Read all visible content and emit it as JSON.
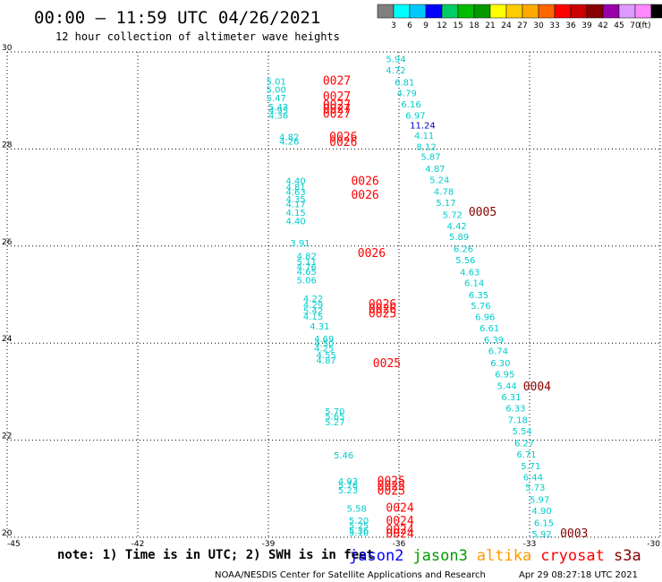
{
  "header": {
    "title": "00:00 — 11:59 UTC 04/26/2021",
    "subtitle": "12 hour collection of altimeter wave heights",
    "unit_label": "(ft)"
  },
  "scale": {
    "levels": [
      "3",
      "6",
      "9",
      "12",
      "15",
      "18",
      "21",
      "24",
      "27",
      "30",
      "33",
      "36",
      "39",
      "42",
      "45",
      "70"
    ],
    "colors": [
      "#808080",
      "#00ffff",
      "#00c8ff",
      "#0000ff",
      "#00cc66",
      "#00bb00",
      "#009900",
      "#ffff00",
      "#ffcc00",
      "#ffaa00",
      "#ff6600",
      "#ff0000",
      "#cc0000",
      "#880000",
      "#9900aa",
      "#dd99ff",
      "#ff88ff",
      "#000000"
    ]
  },
  "footer": {
    "note": "note: 1) Time is in UTC; 2) SWH is in feet",
    "satellites": [
      {
        "name": "jason2",
        "color": "#0000ff"
      },
      {
        "name": "jason3",
        "color": "#009900"
      },
      {
        "name": "altika",
        "color": "#ff9900"
      },
      {
        "name": "cryosat",
        "color": "#ff0000"
      },
      {
        "name": "s3a",
        "color": "#880000"
      }
    ],
    "credit": "NOAA/NESDIS Center for Satellite Applications and Research",
    "timestamp": "Apr 29 08:27:18 UTC 2021"
  },
  "chart_data": {
    "type": "scatter",
    "xlim": [
      -45,
      -30
    ],
    "ylim": [
      20,
      30
    ],
    "x_ticks": [
      "-45",
      "-42",
      "-39",
      "-36",
      "-33",
      "-30"
    ],
    "y_ticks": [
      "20",
      "22",
      "24",
      "26",
      "28",
      "30"
    ],
    "grid": true,
    "swh_color": "#00cccc",
    "series": [
      {
        "name": "left-track-swh",
        "points": [
          [
            -39.05,
            29.4,
            "5.01"
          ],
          [
            -39.05,
            29.23,
            "5.00"
          ],
          [
            -39.05,
            29.06,
            "5.47"
          ],
          [
            -39.0,
            28.87,
            "5.43"
          ],
          [
            -39.0,
            28.8,
            "4.95"
          ],
          [
            -39.0,
            28.7,
            "4.36"
          ],
          [
            -38.75,
            28.26,
            "4.82"
          ],
          [
            -38.75,
            28.16,
            "4.26"
          ],
          [
            -38.6,
            27.35,
            "4.40"
          ],
          [
            -38.6,
            27.22,
            "4.81"
          ],
          [
            -38.6,
            27.12,
            "4.63"
          ],
          [
            -38.6,
            26.97,
            "4.35"
          ],
          [
            -38.6,
            26.87,
            "4.17"
          ],
          [
            -38.6,
            26.7,
            "4.15"
          ],
          [
            -38.6,
            26.52,
            "4.40"
          ],
          [
            -38.5,
            26.07,
            "3.91"
          ],
          [
            -38.35,
            25.8,
            "4.82"
          ],
          [
            -38.35,
            25.68,
            "5.11"
          ],
          [
            -38.35,
            25.58,
            "4.76"
          ],
          [
            -38.35,
            25.48,
            "4.65"
          ],
          [
            -38.35,
            25.3,
            "5.06"
          ],
          [
            -38.2,
            24.93,
            "4.22"
          ],
          [
            -38.2,
            24.8,
            "4.29"
          ],
          [
            -38.2,
            24.68,
            "5.42"
          ],
          [
            -38.2,
            24.56,
            "4.15"
          ],
          [
            -38.05,
            24.35,
            "4.31"
          ],
          [
            -37.95,
            24.1,
            "4.69"
          ],
          [
            -37.95,
            24.0,
            "4.50"
          ],
          [
            -37.95,
            23.9,
            "4.25"
          ],
          [
            -37.9,
            23.76,
            "4.55"
          ],
          [
            -37.9,
            23.65,
            "4.87"
          ],
          [
            -37.7,
            22.6,
            "5.70"
          ],
          [
            -37.7,
            22.5,
            "5.65"
          ],
          [
            -37.7,
            22.38,
            "5.27"
          ],
          [
            -37.5,
            21.7,
            "5.46"
          ],
          [
            -37.4,
            21.16,
            "4.93"
          ],
          [
            -37.4,
            21.08,
            "5.76"
          ],
          [
            -37.4,
            20.98,
            "5.23"
          ],
          [
            -37.2,
            20.6,
            "5.58"
          ],
          [
            -37.15,
            20.35,
            "5.20"
          ],
          [
            -37.15,
            20.25,
            "5.25"
          ],
          [
            -37.15,
            20.15,
            "5.36"
          ],
          [
            -37.15,
            20.1,
            "5.10"
          ]
        ]
      },
      {
        "name": "right-track-swh",
        "points": [
          [
            -36.3,
            29.86,
            "5.94"
          ],
          [
            -36.3,
            29.63,
            "4.72"
          ],
          [
            -36.1,
            29.38,
            "6.81"
          ],
          [
            -36.05,
            29.16,
            "4.79"
          ],
          [
            -35.95,
            28.93,
            "6.16"
          ],
          [
            -35.85,
            28.7,
            "6.97"
          ],
          [
            -35.75,
            28.5,
            "11.24"
          ],
          [
            -35.65,
            28.28,
            "4.11"
          ],
          [
            -35.6,
            28.05,
            "8.12"
          ],
          [
            -35.5,
            27.85,
            "5.87"
          ],
          [
            -35.4,
            27.6,
            "4.87"
          ],
          [
            -35.3,
            27.37,
            "5.24"
          ],
          [
            -35.2,
            27.13,
            "4.78"
          ],
          [
            -35.15,
            26.9,
            "5.17"
          ],
          [
            -35.0,
            26.65,
            "5.72"
          ],
          [
            -34.9,
            26.42,
            "4.42"
          ],
          [
            -34.85,
            26.2,
            "5.89"
          ],
          [
            -34.75,
            25.95,
            "6.26"
          ],
          [
            -34.7,
            25.72,
            "5.56"
          ],
          [
            -34.6,
            25.47,
            "4.63"
          ],
          [
            -34.5,
            25.25,
            "6.14"
          ],
          [
            -34.4,
            25.0,
            "6.35"
          ],
          [
            -34.35,
            24.78,
            "5.76"
          ],
          [
            -34.25,
            24.55,
            "6.96"
          ],
          [
            -34.15,
            24.32,
            "6.61"
          ],
          [
            -34.05,
            24.08,
            "6.39"
          ],
          [
            -33.95,
            23.85,
            "6.74"
          ],
          [
            -33.9,
            23.6,
            "6.30"
          ],
          [
            -33.8,
            23.37,
            "6.95"
          ],
          [
            -33.75,
            23.13,
            "5.44"
          ],
          [
            -33.65,
            22.9,
            "6.31"
          ],
          [
            -33.55,
            22.67,
            "6.33"
          ],
          [
            -33.5,
            22.43,
            "7.18"
          ],
          [
            -33.4,
            22.2,
            "5.54"
          ],
          [
            -33.35,
            21.95,
            "6.27"
          ],
          [
            -33.3,
            21.72,
            "6.71"
          ],
          [
            -33.2,
            21.48,
            "5.71"
          ],
          [
            -33.15,
            21.25,
            "6.44"
          ],
          [
            -33.1,
            21.03,
            "5.73"
          ],
          [
            -33.0,
            20.78,
            "5.97"
          ],
          [
            -32.95,
            20.55,
            "4.90"
          ],
          [
            -32.9,
            20.3,
            "6.15"
          ],
          [
            -32.95,
            20.07,
            "5.92"
          ]
        ]
      },
      {
        "name": "orbit-cryosat",
        "color": "#ff0000",
        "points": [
          [
            -37.75,
            29.4,
            "0027"
          ],
          [
            -37.75,
            29.08,
            "0027"
          ],
          [
            -37.75,
            28.9,
            "0027"
          ],
          [
            -37.75,
            28.82,
            "0027"
          ],
          [
            -37.75,
            28.72,
            "0027"
          ],
          [
            -37.6,
            28.25,
            "0026"
          ],
          [
            -37.6,
            28.14,
            "0026"
          ],
          [
            -37.1,
            27.33,
            "0026"
          ],
          [
            -37.1,
            27.05,
            "0026"
          ],
          [
            -36.95,
            25.85,
            "0026"
          ],
          [
            -36.7,
            24.8,
            "0026"
          ],
          [
            -36.7,
            24.7,
            "0026"
          ],
          [
            -36.7,
            24.6,
            "0025"
          ],
          [
            -36.6,
            23.58,
            "0025"
          ],
          [
            -36.5,
            21.15,
            "0025"
          ],
          [
            -36.5,
            21.05,
            "0025"
          ],
          [
            -36.5,
            20.95,
            "0025"
          ],
          [
            -36.3,
            20.6,
            "0024"
          ],
          [
            -36.3,
            20.33,
            "0024"
          ],
          [
            -36.3,
            20.15,
            "0024"
          ],
          [
            -36.3,
            20.06,
            "0024"
          ]
        ]
      },
      {
        "name": "orbit-s3a",
        "color": "#880000",
        "points": [
          [
            -34.4,
            26.7,
            "0005"
          ],
          [
            -33.15,
            23.1,
            "0004"
          ],
          [
            -32.3,
            20.07,
            "0003"
          ]
        ]
      }
    ]
  }
}
